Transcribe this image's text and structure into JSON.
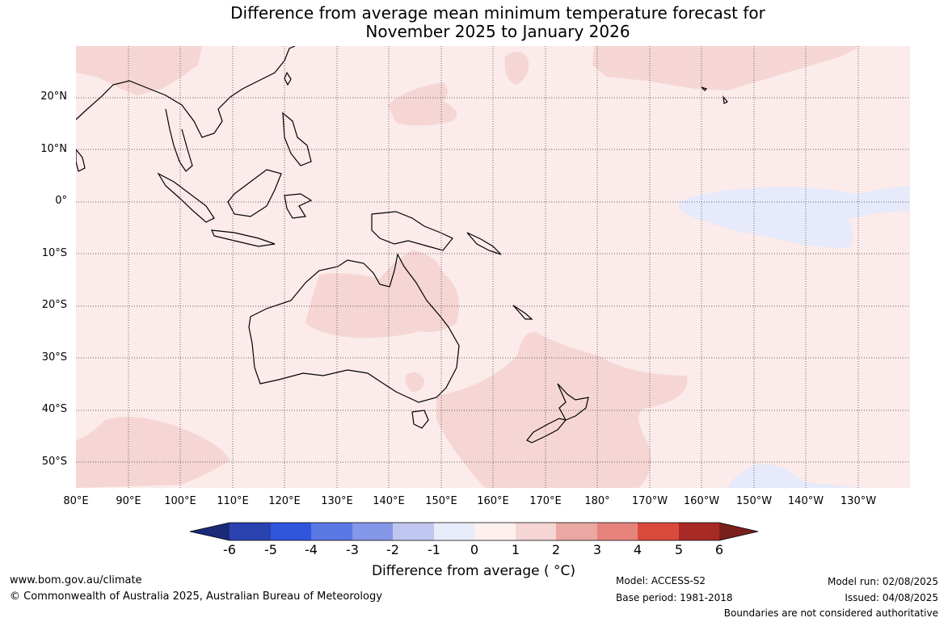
{
  "title": {
    "line1": "Difference from average mean minimum temperature forecast for",
    "line2": "November 2025 to January 2026"
  },
  "map": {
    "lat_labels": [
      "20°N",
      "10°N",
      "0°",
      "10°S",
      "20°S",
      "30°S",
      "40°S",
      "50°S"
    ],
    "lon_labels": [
      "80°E",
      "90°E",
      "100°E",
      "110°E",
      "120°E",
      "130°E",
      "140°E",
      "150°E",
      "160°E",
      "170°E",
      "180°",
      "170°W",
      "160°W",
      "150°W",
      "140°W",
      "130°W"
    ],
    "background_color": "#fbebea",
    "warm_1_2_color": "#f5d6d4",
    "cool_0_neg1_color": "#e6eafa"
  },
  "colorbar": {
    "title": "Difference from average ( °C)",
    "ticks": [
      "-6",
      "-5",
      "-4",
      "-3",
      "-2",
      "-1",
      "0",
      "1",
      "2",
      "3",
      "4",
      "5",
      "6"
    ],
    "colors": [
      "#1a2a78",
      "#2a43b0",
      "#2f55dd",
      "#5a78e3",
      "#8497e8",
      "#bfc7f0",
      "#e8ecfa",
      "#fdf0ef",
      "#f5d6d4",
      "#eba7a2",
      "#e6837c",
      "#d94a3c",
      "#a82a25",
      "#7a1f1b"
    ]
  },
  "footer": {
    "website": "www.bom.gov.au/climate",
    "copyright": "© Commonwealth of Australia 2025, Australian Bureau of Meteorology",
    "model": "Model: ACCESS-S2",
    "base_period": "Base period: 1981-2018",
    "model_run": "Model run: 02/08/2025",
    "issued": "Issued: 04/08/2025",
    "disclaimer": "Boundaries are not considered authoritative"
  }
}
